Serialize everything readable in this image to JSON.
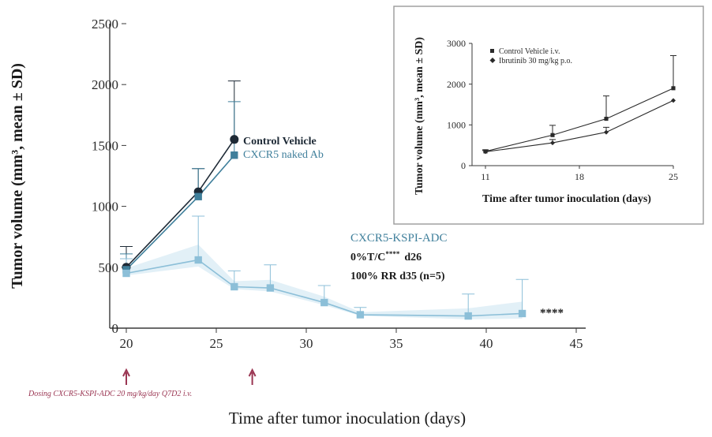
{
  "chart_data": [
    {
      "type": "line",
      "title": "",
      "xlabel": "Time after tumor inoculation (days)",
      "ylabel": "Tumor volume (mm³, mean ± SD)",
      "xlim": [
        20,
        45
      ],
      "ylim": [
        0,
        2500
      ],
      "xticks": [
        20,
        25,
        30,
        35,
        40,
        45
      ],
      "yticks": [
        0,
        500,
        1000,
        1500,
        2000,
        2500
      ],
      "series": [
        {
          "name": "Control Vehicle",
          "color": "#1e2a36",
          "marker": "circle",
          "x": [
            20,
            24,
            26
          ],
          "y": [
            500,
            1120,
            1550
          ],
          "err": [
            170,
            190,
            480
          ]
        },
        {
          "name": "CXCR5 naked Ab",
          "color": "#3f7f9b",
          "marker": "square",
          "x": [
            20,
            24,
            26
          ],
          "y": [
            480,
            1080,
            1420
          ],
          "err": [
            130,
            230,
            440
          ]
        },
        {
          "name": "CXCR5-KSPI-ADC",
          "color": "#8cbfd8",
          "marker": "square",
          "x": [
            20,
            24,
            26,
            28,
            31,
            33,
            39,
            42
          ],
          "y": [
            450,
            560,
            340,
            330,
            210,
            110,
            100,
            120
          ],
          "err": [
            120,
            360,
            130,
            190,
            140,
            60,
            180,
            280
          ]
        }
      ],
      "legend": [
        {
          "label": "Control Vehicle",
          "color": "#1e2a36"
        },
        {
          "label": "CXCR5 naked Ab",
          "color": "#3f7f9b"
        }
      ],
      "annotations": {
        "adc_name": "CXCR5-KSPI-ADC",
        "adc_tc_prefix": "0%T/C",
        "adc_tc_stars": "****",
        "adc_tc_day": "d26",
        "adc_response": "100% RR d35 (n=5)",
        "significance": "****",
        "dosing_text": "Dosing CXCR5-KSPI-ADC 20 mg/kg/day Q7D2 i.v.",
        "dosing_days": [
          20,
          27
        ],
        "dosing_color": "#9a3552"
      }
    },
    {
      "type": "line",
      "title": "",
      "xlabel": "Time after tumor inoculation (days)",
      "ylabel": "Tumor volume (mm³, mean ± SD)",
      "xlim": [
        10,
        25
      ],
      "ylim": [
        0,
        3000
      ],
      "xticks": [
        11,
        18,
        25
      ],
      "yticks": [
        0,
        1000,
        2000,
        3000
      ],
      "series": [
        {
          "name": "Control Vehicle i.v.",
          "color": "#2a2a2a",
          "marker": "square",
          "x": [
            11,
            16,
            20,
            25
          ],
          "y": [
            350,
            750,
            1150,
            1900
          ],
          "err": [
            40,
            240,
            560,
            800
          ]
        },
        {
          "name": "Ibrutinib 30 mg/kg p.o.",
          "color": "#2a2a2a",
          "marker": "diamond",
          "x": [
            11,
            16,
            20,
            25
          ],
          "y": [
            340,
            560,
            820,
            1600
          ],
          "err": [
            30,
            80,
            120,
            0
          ]
        }
      ],
      "legend": [
        {
          "label": "Control Vehicle i.v.",
          "color": "#2a2a2a"
        },
        {
          "label": "Ibrutinib 30 mg/kg p.o.",
          "color": "#2a2a2a"
        }
      ]
    }
  ]
}
